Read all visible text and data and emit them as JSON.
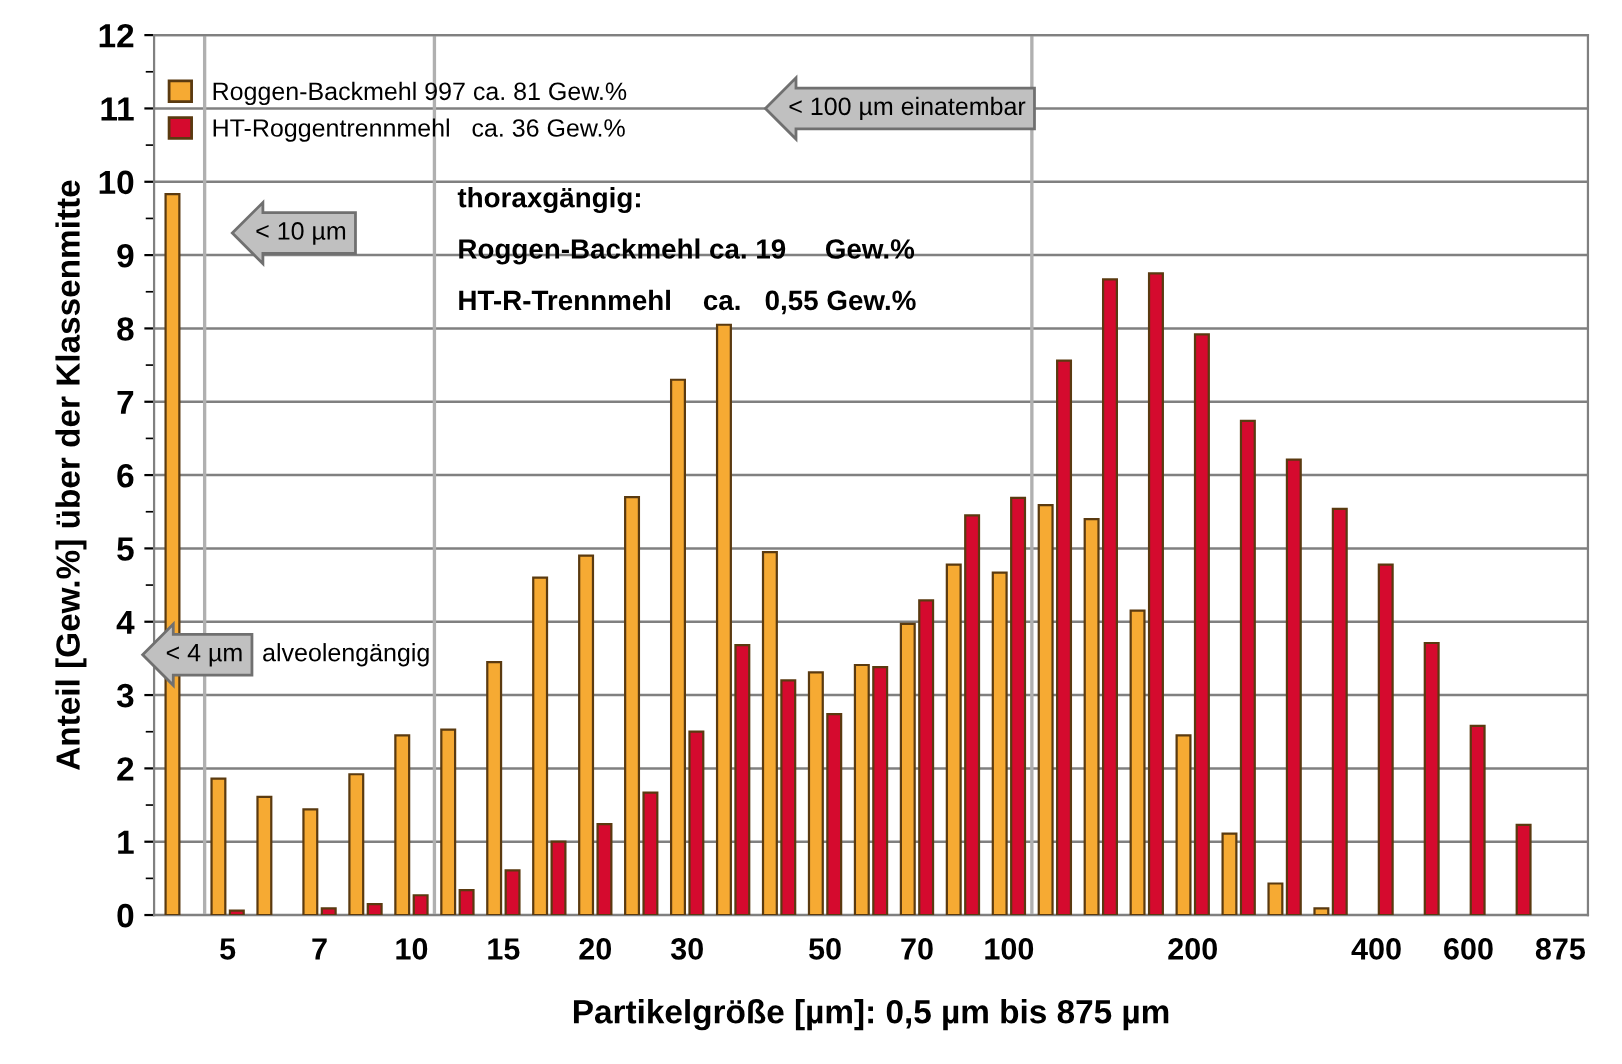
{
  "chart_data": {
    "type": "bar",
    "xlabel": "Partikelgröße [µm]: 0,5 µm bis 875 µm",
    "ylabel": "Anteil [Gew.%] über der Klassenmitte",
    "categories": [
      null,
      "5",
      null,
      "7",
      null,
      "10",
      null,
      "15",
      null,
      "20",
      null,
      "30",
      null,
      null,
      "50",
      null,
      "70",
      null,
      "100",
      null,
      null,
      null,
      "200",
      null,
      null,
      null,
      "400",
      null,
      "600",
      null,
      "875"
    ],
    "series": [
      {
        "name": "Roggen-Backmehl 997 ca. 81 Gew.%",
        "color": "#f6aa33",
        "values": [
          9.83,
          1.86,
          1.61,
          1.44,
          1.92,
          2.45,
          2.53,
          3.45,
          4.6,
          4.9,
          5.7,
          7.3,
          8.05,
          4.95,
          3.31,
          3.41,
          3.97,
          4.78,
          4.67,
          5.59,
          5.4,
          4.15,
          2.45,
          1.11,
          0.43,
          0.09,
          null,
          null,
          null,
          null,
          null
        ]
      },
      {
        "name": "HT-Roggentrennmehl   ca. 36 Gew.%",
        "color": "#d50a2e",
        "values": [
          null,
          0.06,
          null,
          0.09,
          0.15,
          0.27,
          0.34,
          0.61,
          1.0,
          1.24,
          1.67,
          2.5,
          3.68,
          3.2,
          2.74,
          3.38,
          4.29,
          5.45,
          5.69,
          7.56,
          8.67,
          8.75,
          7.92,
          6.74,
          6.21,
          5.54,
          4.78,
          3.71,
          2.58,
          1.23,
          null
        ]
      }
    ],
    "ylim": [
      0,
      12
    ],
    "yticks": [
      0,
      1,
      2,
      3,
      4,
      5,
      6,
      7,
      8,
      9,
      10,
      11,
      12
    ],
    "grid": "y",
    "legend": "top left",
    "annotations": [
      "< 4 µm",
      "< 10 µm",
      "< 100 µm einatembar",
      "alveolengängig",
      "thoraxgängig:",
      "Roggen-Backmehl ca. 19     Gew.%",
      "HT-R-Trennmehl    ca.   0,55 Gew.%"
    ]
  }
}
